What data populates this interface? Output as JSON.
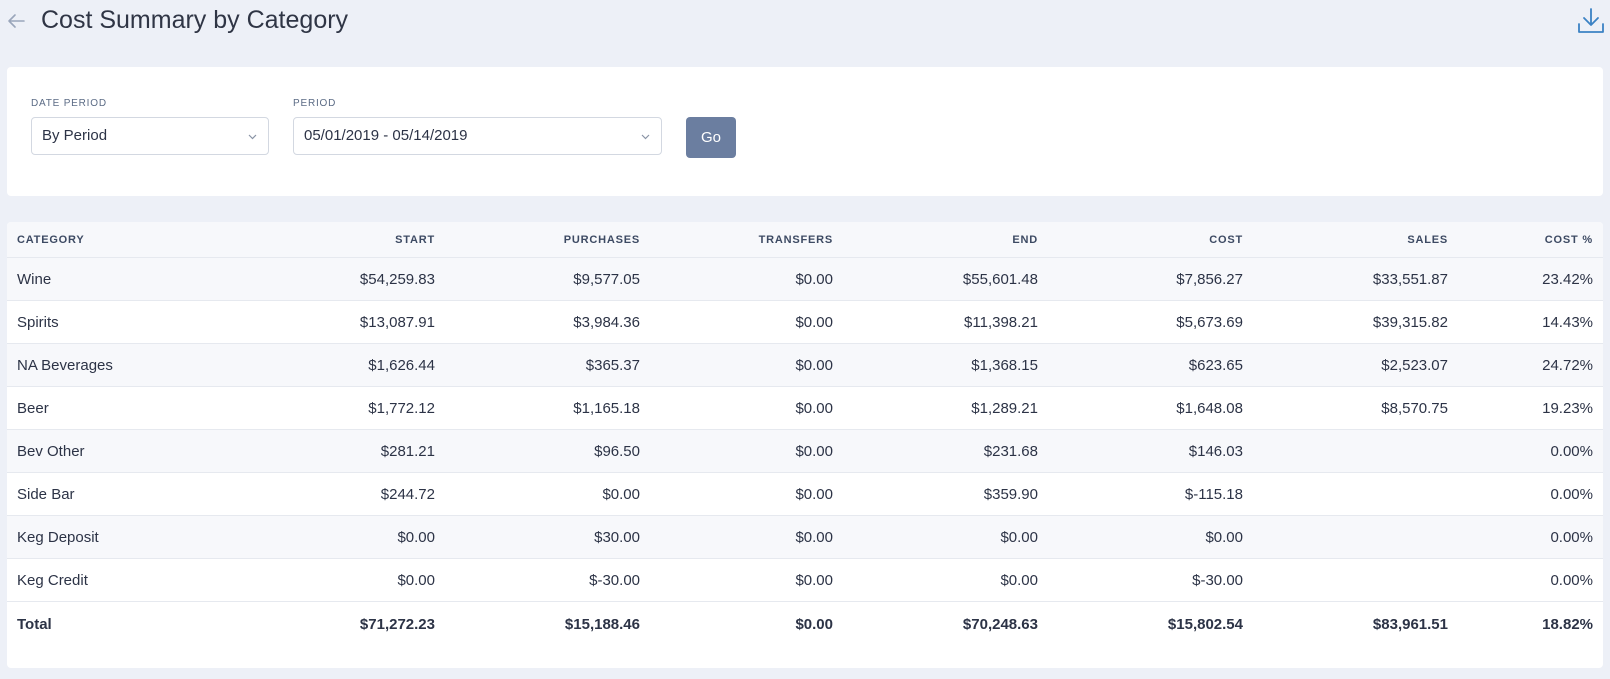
{
  "header": {
    "title": "Cost Summary by Category"
  },
  "filters": {
    "date_period_label": "DATE PERIOD",
    "date_period_value": "By Period",
    "period_label": "PERIOD",
    "period_value": "05/01/2019 - 05/14/2019",
    "go_label": "Go"
  },
  "table": {
    "columns": [
      "CATEGORY",
      "START",
      "PURCHASES",
      "TRANSFERS",
      "END",
      "COST",
      "SALES",
      "COST %"
    ],
    "rows": [
      {
        "category": "Wine",
        "start": "$54,259.83",
        "purchases": "$9,577.05",
        "transfers": "$0.00",
        "end": "$55,601.48",
        "cost": "$7,856.27",
        "sales": "$33,551.87",
        "cost_pct": "23.42%"
      },
      {
        "category": "Spirits",
        "start": "$13,087.91",
        "purchases": "$3,984.36",
        "transfers": "$0.00",
        "end": "$11,398.21",
        "cost": "$5,673.69",
        "sales": "$39,315.82",
        "cost_pct": "14.43%"
      },
      {
        "category": "NA Beverages",
        "start": "$1,626.44",
        "purchases": "$365.37",
        "transfers": "$0.00",
        "end": "$1,368.15",
        "cost": "$623.65",
        "sales": "$2,523.07",
        "cost_pct": "24.72%"
      },
      {
        "category": "Beer",
        "start": "$1,772.12",
        "purchases": "$1,165.18",
        "transfers": "$0.00",
        "end": "$1,289.21",
        "cost": "$1,648.08",
        "sales": "$8,570.75",
        "cost_pct": "19.23%"
      },
      {
        "category": "Bev Other",
        "start": "$281.21",
        "purchases": "$96.50",
        "transfers": "$0.00",
        "end": "$231.68",
        "cost": "$146.03",
        "sales": "",
        "cost_pct": "0.00%"
      },
      {
        "category": "Side Bar",
        "start": "$244.72",
        "purchases": "$0.00",
        "transfers": "$0.00",
        "end": "$359.90",
        "cost": "$-115.18",
        "sales": "",
        "cost_pct": "0.00%"
      },
      {
        "category": "Keg Deposit",
        "start": "$0.00",
        "purchases": "$30.00",
        "transfers": "$0.00",
        "end": "$0.00",
        "cost": "$0.00",
        "sales": "",
        "cost_pct": "0.00%"
      },
      {
        "category": "Keg Credit",
        "start": "$0.00",
        "purchases": "$-30.00",
        "transfers": "$0.00",
        "end": "$0.00",
        "cost": "$-30.00",
        "sales": "",
        "cost_pct": "0.00%"
      }
    ],
    "total": {
      "category": "Total",
      "start": "$71,272.23",
      "purchases": "$15,188.46",
      "transfers": "$0.00",
      "end": "$70,248.63",
      "cost": "$15,802.54",
      "sales": "$83,961.51",
      "cost_pct": "18.82%"
    }
  },
  "icons": {
    "back": "arrow-left-icon",
    "download": "download-icon",
    "chevron": "chevron-down-icon"
  },
  "colors": {
    "background": "#edf0f7",
    "button": "#6b7ea0",
    "icon_blue": "#3b82c4"
  }
}
